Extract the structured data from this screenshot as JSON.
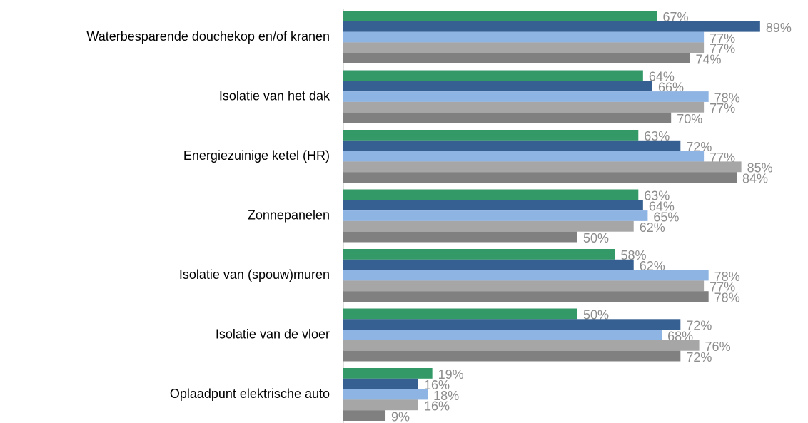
{
  "chart_data": {
    "type": "bar",
    "orientation": "horizontal",
    "categories": [
      "Waterbesparende douchekop en/of kranen",
      "Isolatie van het dak",
      "Energiezuinige ketel (HR)",
      "Zonnepanelen",
      "Isolatie van (spouw)muren",
      "Isolatie van de vloer",
      "Oplaadpunt elektrische auto"
    ],
    "series": [
      {
        "color": "#339966",
        "values": [
          67,
          64,
          63,
          63,
          58,
          50,
          19
        ],
        "value_labels": [
          "67%",
          "64%",
          "63%",
          "63%",
          "58%",
          "50%",
          "19%"
        ]
      },
      {
        "color": "#376092",
        "values": [
          89,
          66,
          72,
          64,
          62,
          72,
          16
        ],
        "value_labels": [
          "89%",
          "66%",
          "72%",
          "64%",
          "62%",
          "72%",
          "16%"
        ]
      },
      {
        "color": "#8eb4e3",
        "values": [
          77,
          78,
          77,
          65,
          78,
          68,
          18
        ],
        "value_labels": [
          "77%",
          "78%",
          "77%",
          "65%",
          "78%",
          "68%",
          "18%"
        ]
      },
      {
        "color": "#a6a6a6",
        "values": [
          77,
          77,
          85,
          62,
          77,
          76,
          16
        ],
        "value_labels": [
          "77%",
          "77%",
          "85%",
          "62%",
          "77%",
          "76%",
          "16%"
        ]
      },
      {
        "color": "#808080",
        "values": [
          74,
          70,
          84,
          50,
          78,
          72,
          9
        ],
        "value_labels": [
          "74%",
          "70%",
          "84%",
          "50%",
          "78%",
          "72%",
          "9%"
        ]
      }
    ]
  }
}
